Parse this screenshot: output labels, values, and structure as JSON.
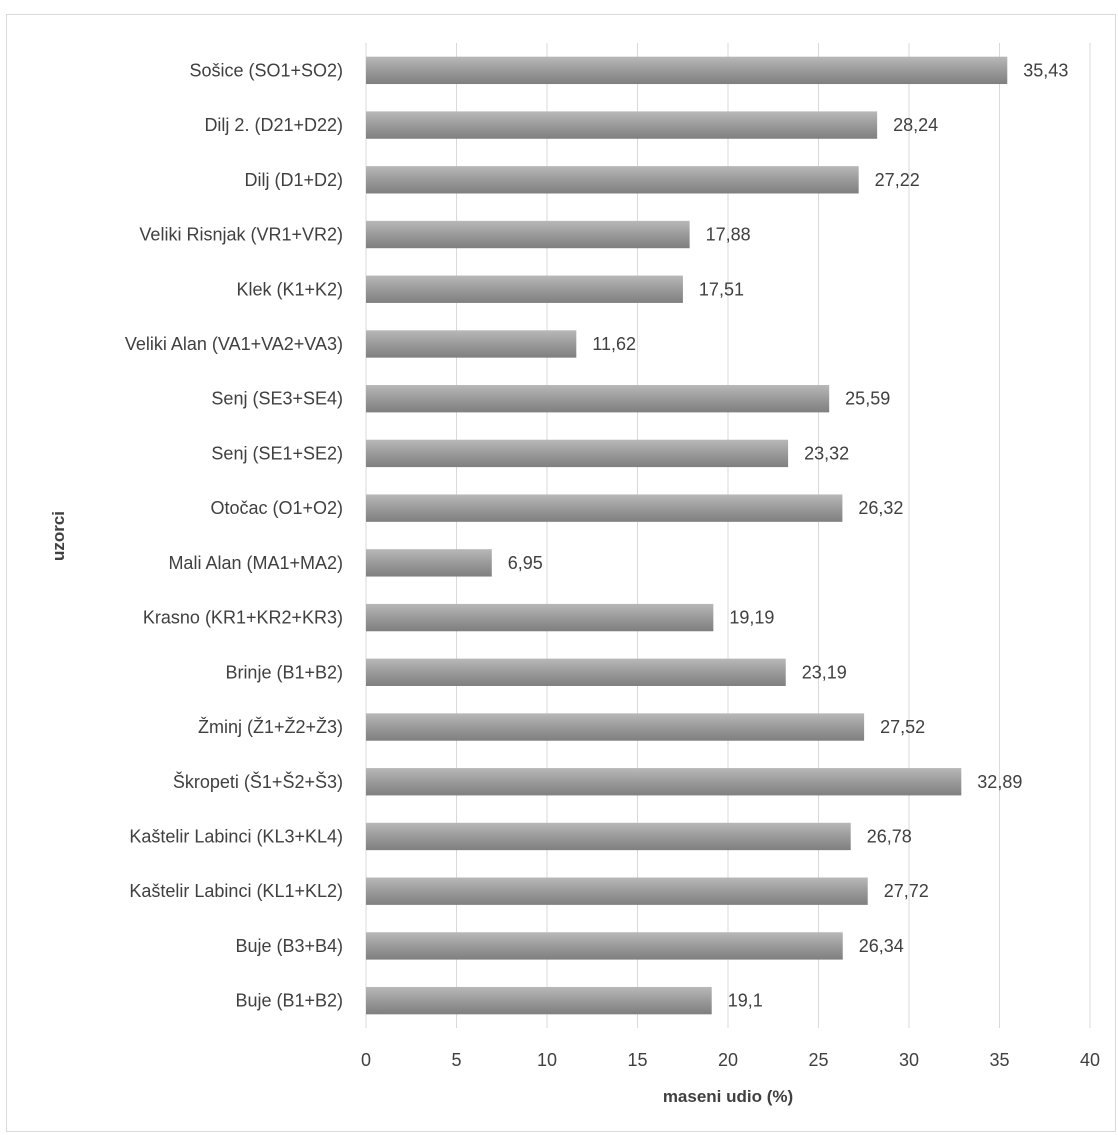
{
  "chart_data": {
    "type": "bar",
    "orientation": "horizontal",
    "categories": [
      "Sošice (SO1+SO2)",
      "Dilj 2. (D21+D22)",
      "Dilj (D1+D2)",
      "Veliki Risnjak (VR1+VR2)",
      "Klek (K1+K2)",
      "Veliki Alan (VA1+VA2+VA3)",
      "Senj (SE3+SE4)",
      "Senj (SE1+SE2)",
      "Otočac (O1+O2)",
      "Mali Alan (MA1+MA2)",
      "Krasno (KR1+KR2+KR3)",
      "Brinje (B1+B2)",
      "Žminj (Ž1+Ž2+Ž3)",
      "Škropeti (Š1+Š2+Š3)",
      "Kaštelir Labinci (KL3+KL4)",
      "Kaštelir Labinci (KL1+KL2)",
      "Buje (B3+B4)",
      "Buje (B1+B2)"
    ],
    "values": [
      35.43,
      28.24,
      27.22,
      17.88,
      17.51,
      11.62,
      25.59,
      23.32,
      26.32,
      6.95,
      19.19,
      23.19,
      27.52,
      32.89,
      26.78,
      27.72,
      26.34,
      19.1
    ],
    "value_labels": [
      "35,43",
      "28,24",
      "27,22",
      "17,88",
      "17,51",
      "11,62",
      "25,59",
      "23,32",
      "26,32",
      "6,95",
      "19,19",
      "23,19",
      "27,52",
      "32,89",
      "26,78",
      "27,72",
      "26,34",
      "19,1"
    ],
    "xlabel": "maseni udio (%)",
    "ylabel": "uzorci",
    "xlim": [
      0,
      40
    ],
    "xticks": [
      0,
      5,
      10,
      15,
      20,
      25,
      30,
      35,
      40
    ],
    "grid": "vertical",
    "legend": "none",
    "bar_color": "#9a9a9a"
  }
}
